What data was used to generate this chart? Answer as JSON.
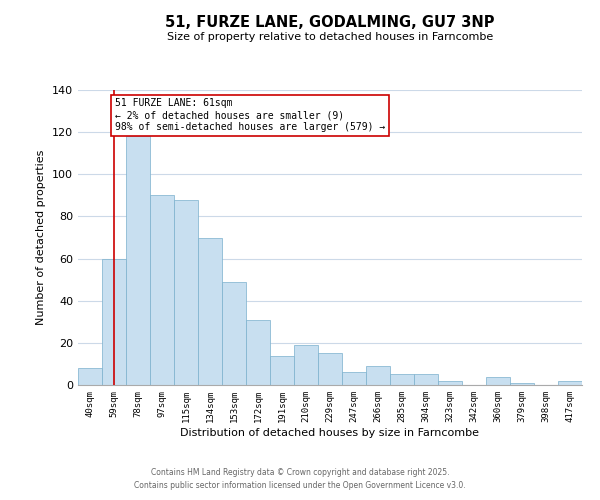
{
  "title": "51, FURZE LANE, GODALMING, GU7 3NP",
  "subtitle": "Size of property relative to detached houses in Farncombe",
  "xlabel": "Distribution of detached houses by size in Farncombe",
  "ylabel": "Number of detached properties",
  "bar_labels": [
    "40sqm",
    "59sqm",
    "78sqm",
    "97sqm",
    "115sqm",
    "134sqm",
    "153sqm",
    "172sqm",
    "191sqm",
    "210sqm",
    "229sqm",
    "247sqm",
    "266sqm",
    "285sqm",
    "304sqm",
    "323sqm",
    "342sqm",
    "360sqm",
    "379sqm",
    "398sqm",
    "417sqm"
  ],
  "bar_values": [
    8,
    60,
    118,
    90,
    88,
    70,
    49,
    31,
    14,
    19,
    15,
    6,
    9,
    5,
    5,
    2,
    0,
    4,
    1,
    0,
    2
  ],
  "bar_color": "#c8dff0",
  "bar_edge_color": "#7ab0cc",
  "vline_x": 1,
  "vline_color": "#cc0000",
  "ylim": [
    0,
    140
  ],
  "yticks": [
    0,
    20,
    40,
    60,
    80,
    100,
    120,
    140
  ],
  "annotation_title": "51 FURZE LANE: 61sqm",
  "annotation_line1": "← 2% of detached houses are smaller (9)",
  "annotation_line2": "98% of semi-detached houses are larger (579) →",
  "annotation_box_color": "#ffffff",
  "annotation_box_edge": "#cc0000",
  "footer_line1": "Contains HM Land Registry data © Crown copyright and database right 2025.",
  "footer_line2": "Contains public sector information licensed under the Open Government Licence v3.0.",
  "background_color": "#ffffff",
  "grid_color": "#ccd9e8"
}
